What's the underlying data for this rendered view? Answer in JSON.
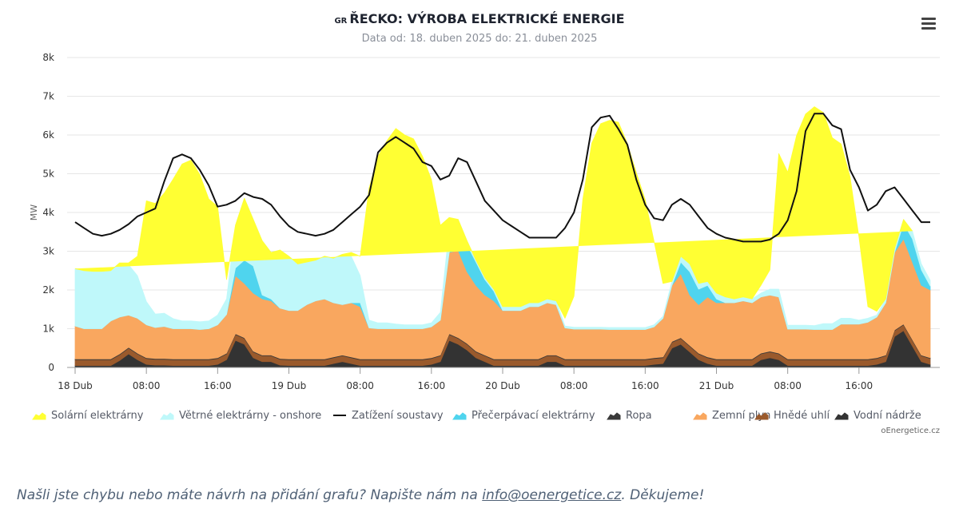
{
  "header": {
    "flag_code": "GR",
    "title": "ŘECKO: VÝROBA ELEKTRICKÉ ENERGIE",
    "subtitle": "Data od: 18. duben 2025 do: 21. duben 2025",
    "menu_icon": "hamburger-menu-icon"
  },
  "credit": "oEnergetice.cz",
  "footer": {
    "text_before": "Našli jste chybu nebo máte návrh na přidání grafu? Napište nám na ",
    "email": "info@oenergetice.cz",
    "text_after": ". Děkujeme!"
  },
  "legend": [
    {
      "label": "Solární elektrárny",
      "color": "#ffff33",
      "kind": "area"
    },
    {
      "label": "Větrné elektrárny - onshore",
      "color": "#bff8fa",
      "kind": "area"
    },
    {
      "label": "Zatížení soustavy",
      "color": "#111111",
      "kind": "line"
    },
    {
      "label": "Přečerpávací elektrárny",
      "color": "#4fd4ee",
      "kind": "area"
    },
    {
      "label": "Ropa",
      "color": "#3a3a3a",
      "kind": "area"
    },
    {
      "label": "Zemní plyn",
      "color": "#f9a75f",
      "kind": "area"
    },
    {
      "label": "Hnědé uhlí",
      "color": "#9a5a2c",
      "kind": "area"
    },
    {
      "label": "Vodní nádrže",
      "color": "#333333",
      "kind": "area"
    }
  ],
  "chart_data": {
    "type": "area",
    "title": "ŘECKO: VÝROBA ELEKTRICKÉ ENERGIE",
    "subtitle": "Data od: 18. duben 2025 do: 21. duben 2025",
    "ylabel": "MW",
    "ylim": [
      0,
      8000
    ],
    "yticks": [
      0,
      1000,
      2000,
      3000,
      4000,
      5000,
      6000,
      7000,
      8000
    ],
    "ytick_labels": [
      "0",
      "1k",
      "2k",
      "3k",
      "4k",
      "5k",
      "6k",
      "7k",
      "8k"
    ],
    "x_hours": {
      "start": 0,
      "end": 96,
      "step": 1
    },
    "x_ticks": [
      {
        "hour": 0,
        "label": "18 Dub"
      },
      {
        "hour": 8,
        "label": "08:00"
      },
      {
        "hour": 16,
        "label": "16:00"
      },
      {
        "hour": 24,
        "label": "19 Dub"
      },
      {
        "hour": 32,
        "label": "08:00"
      },
      {
        "hour": 40,
        "label": "16:00"
      },
      {
        "hour": 48,
        "label": "20 Dub"
      },
      {
        "hour": 56,
        "label": "08:00"
      },
      {
        "hour": 64,
        "label": "16:00"
      },
      {
        "hour": 72,
        "label": "21 Dub"
      },
      {
        "hour": 80,
        "label": "08:00"
      },
      {
        "hour": 88,
        "label": "16:00"
      }
    ],
    "stack_order": [
      "Vodní nádrže",
      "Hnědé uhlí",
      "Ropa",
      "Zemní plyn",
      "Přečerpávací elektrárny",
      "Větrné elektrárny - onshore",
      "Solární elektrárny"
    ],
    "series": [
      {
        "name": "Vodní nádrže",
        "color": "#333333",
        "kind": "area",
        "values": [
          50,
          50,
          50,
          50,
          50,
          180,
          350,
          200,
          80,
          60,
          60,
          50,
          50,
          50,
          50,
          50,
          80,
          200,
          700,
          600,
          250,
          150,
          150,
          60,
          50,
          50,
          50,
          50,
          50,
          100,
          150,
          100,
          50,
          50,
          50,
          50,
          50,
          50,
          50,
          50,
          80,
          150,
          700,
          600,
          450,
          250,
          150,
          50,
          50,
          50,
          50,
          50,
          50,
          150,
          150,
          50,
          50,
          50,
          50,
          50,
          50,
          50,
          50,
          50,
          50,
          80,
          100,
          500,
          600,
          400,
          200,
          100,
          50,
          50,
          50,
          50,
          50,
          200,
          250,
          200,
          50,
          50,
          50,
          50,
          50,
          50,
          50,
          50,
          50,
          50,
          80,
          150,
          800,
          950,
          550,
          150,
          80
        ]
      },
      {
        "name": "Hnědé uhlí",
        "color": "#9a5a2c",
        "kind": "area",
        "values": [
          150,
          150,
          150,
          150,
          150,
          150,
          150,
          150,
          150,
          150,
          150,
          150,
          150,
          150,
          150,
          150,
          150,
          150,
          150,
          150,
          150,
          150,
          150,
          150,
          150,
          150,
          150,
          150,
          150,
          150,
          150,
          150,
          150,
          150,
          150,
          150,
          150,
          150,
          150,
          150,
          150,
          150,
          150,
          150,
          150,
          150,
          150,
          150,
          150,
          150,
          150,
          150,
          150,
          150,
          150,
          150,
          150,
          150,
          150,
          150,
          150,
          150,
          150,
          150,
          150,
          150,
          150,
          150,
          150,
          150,
          150,
          150,
          150,
          150,
          150,
          150,
          150,
          150,
          150,
          150,
          150,
          150,
          150,
          150,
          150,
          150,
          150,
          150,
          150,
          150,
          150,
          150,
          150,
          150,
          150,
          150,
          150
        ]
      },
      {
        "name": "Ropa",
        "color": "#3a3a3a",
        "kind": "area",
        "values": [
          20,
          20,
          20,
          20,
          20,
          20,
          20,
          20,
          20,
          20,
          20,
          20,
          20,
          20,
          20,
          20,
          20,
          20,
          20,
          20,
          20,
          20,
          20,
          20,
          20,
          20,
          20,
          20,
          20,
          20,
          20,
          20,
          20,
          20,
          20,
          20,
          20,
          20,
          20,
          20,
          20,
          20,
          20,
          20,
          20,
          20,
          20,
          20,
          20,
          20,
          20,
          20,
          20,
          20,
          20,
          20,
          20,
          20,
          20,
          20,
          20,
          20,
          20,
          20,
          20,
          20,
          20,
          20,
          20,
          20,
          20,
          20,
          20,
          20,
          20,
          20,
          20,
          20,
          20,
          20,
          20,
          20,
          20,
          20,
          20,
          20,
          20,
          20,
          20,
          20,
          20,
          20,
          20,
          20,
          20,
          20,
          20
        ]
      },
      {
        "name": "Zemní plyn",
        "color": "#f9a75f",
        "kind": "area",
        "values": [
          850,
          780,
          780,
          780,
          980,
          950,
          830,
          900,
          850,
          800,
          830,
          780,
          780,
          780,
          760,
          780,
          850,
          1000,
          1500,
          1400,
          1500,
          1450,
          1400,
          1300,
          1250,
          1250,
          1400,
          1500,
          1550,
          1400,
          1300,
          1400,
          1350,
          800,
          780,
          780,
          780,
          780,
          780,
          780,
          800,
          900,
          2100,
          2250,
          1850,
          1700,
          1550,
          1500,
          1250,
          1250,
          1250,
          1350,
          1350,
          1350,
          1300,
          800,
          770,
          770,
          770,
          770,
          760,
          760,
          760,
          760,
          760,
          800,
          1000,
          1450,
          1650,
          1300,
          1250,
          1550,
          1450,
          1450,
          1450,
          1500,
          1450,
          1450,
          1450,
          1450,
          770,
          770,
          770,
          760,
          760,
          760,
          900,
          900,
          900,
          950,
          1050,
          1350,
          2000,
          2200,
          2000,
          1800,
          1750
        ]
      },
      {
        "name": "Přečerpávací elektrárny",
        "color": "#4fd4ee",
        "kind": "area",
        "values": [
          0,
          0,
          0,
          0,
          0,
          0,
          0,
          0,
          0,
          0,
          0,
          0,
          0,
          0,
          0,
          0,
          0,
          0,
          200,
          600,
          700,
          100,
          50,
          0,
          0,
          0,
          0,
          0,
          0,
          0,
          0,
          0,
          100,
          0,
          0,
          0,
          0,
          0,
          0,
          0,
          0,
          0,
          0,
          600,
          700,
          600,
          400,
          250,
          0,
          0,
          0,
          0,
          0,
          0,
          0,
          0,
          0,
          0,
          0,
          0,
          0,
          0,
          0,
          0,
          0,
          0,
          0,
          0,
          300,
          600,
          400,
          300,
          100,
          0,
          0,
          0,
          0,
          0,
          0,
          0,
          0,
          0,
          0,
          0,
          0,
          0,
          0,
          0,
          0,
          0,
          0,
          0,
          0,
          400,
          600,
          400,
          100
        ]
      },
      {
        "name": "Větrné elektrárny - onshore",
        "color": "#bff8fa",
        "kind": "area",
        "values": [
          1480,
          1500,
          1480,
          1480,
          1300,
          1400,
          1300,
          1100,
          600,
          350,
          340,
          260,
          200,
          200,
          200,
          200,
          250,
          400,
          1100,
          1600,
          1200,
          1400,
          1200,
          1500,
          1400,
          1200,
          1100,
          1050,
          1100,
          1150,
          1300,
          1200,
          700,
          200,
          150,
          150,
          120,
          100,
          100,
          100,
          100,
          200,
          600,
          200,
          100,
          50,
          50,
          50,
          100,
          100,
          100,
          100,
          100,
          100,
          100,
          50,
          50,
          50,
          50,
          50,
          50,
          50,
          50,
          50,
          50,
          50,
          50,
          100,
          150,
          200,
          150,
          100,
          150,
          150,
          100,
          100,
          100,
          100,
          150,
          200,
          100,
          100,
          100,
          100,
          150,
          150,
          150,
          150,
          100,
          100,
          50,
          100,
          100,
          100,
          200,
          150,
          150
        ]
      },
      {
        "name": "Solární elektrárny",
        "color": "#ffff33",
        "kind": "area",
        "values": [
          0,
          0,
          0,
          0,
          0,
          0,
          50,
          500,
          2600,
          2850,
          3100,
          3600,
          4050,
          4150,
          3800,
          3150,
          2800,
          500,
          0,
          0,
          0,
          0,
          0,
          0,
          0,
          0,
          0,
          0,
          0,
          0,
          0,
          100,
          500,
          3400,
          4300,
          4700,
          5050,
          4900,
          4800,
          4350,
          3700,
          2250,
          300,
          0,
          0,
          0,
          0,
          0,
          0,
          0,
          0,
          0,
          0,
          0,
          0,
          200,
          800,
          3300,
          4750,
          5250,
          5350,
          5300,
          4750,
          4000,
          3300,
          2150,
          850,
          0,
          0,
          0,
          0,
          0,
          0,
          0,
          0,
          0,
          0,
          200,
          500,
          3500,
          3950,
          4900,
          5450,
          5650,
          5450,
          4800,
          4500,
          3650,
          2150,
          300,
          100,
          0,
          0,
          0,
          0
        ]
      },
      {
        "name": "Zatížení soustavy",
        "color": "#111111",
        "kind": "line",
        "values": [
          3750,
          3600,
          3450,
          3400,
          3450,
          3550,
          3700,
          3900,
          4000,
          4100,
          4800,
          5400,
          5500,
          5400,
          5100,
          4700,
          4150,
          4200,
          4300,
          4500,
          4400,
          4350,
          4200,
          3900,
          3650,
          3500,
          3450,
          3400,
          3450,
          3550,
          3750,
          3950,
          4150,
          4450,
          5550,
          5800,
          5950,
          5800,
          5650,
          5300,
          5200,
          4850,
          4950,
          5400,
          5300,
          4800,
          4300,
          4050,
          3800,
          3650,
          3500,
          3350,
          3350,
          3350,
          3350,
          3600,
          4000,
          4850,
          6200,
          6450,
          6500,
          6150,
          5750,
          4850,
          4200,
          3850,
          3800,
          4200,
          4350,
          4200,
          3900,
          3600,
          3450,
          3350,
          3300,
          3250,
          3250,
          3250,
          3300,
          3450,
          3800,
          4550,
          6100,
          6550,
          6550,
          6250,
          6150,
          5100,
          4650,
          4050,
          4200,
          4550,
          4650,
          4350,
          4050,
          3750,
          3750
        ]
      }
    ],
    "grid": true,
    "legend_position": "bottom"
  }
}
